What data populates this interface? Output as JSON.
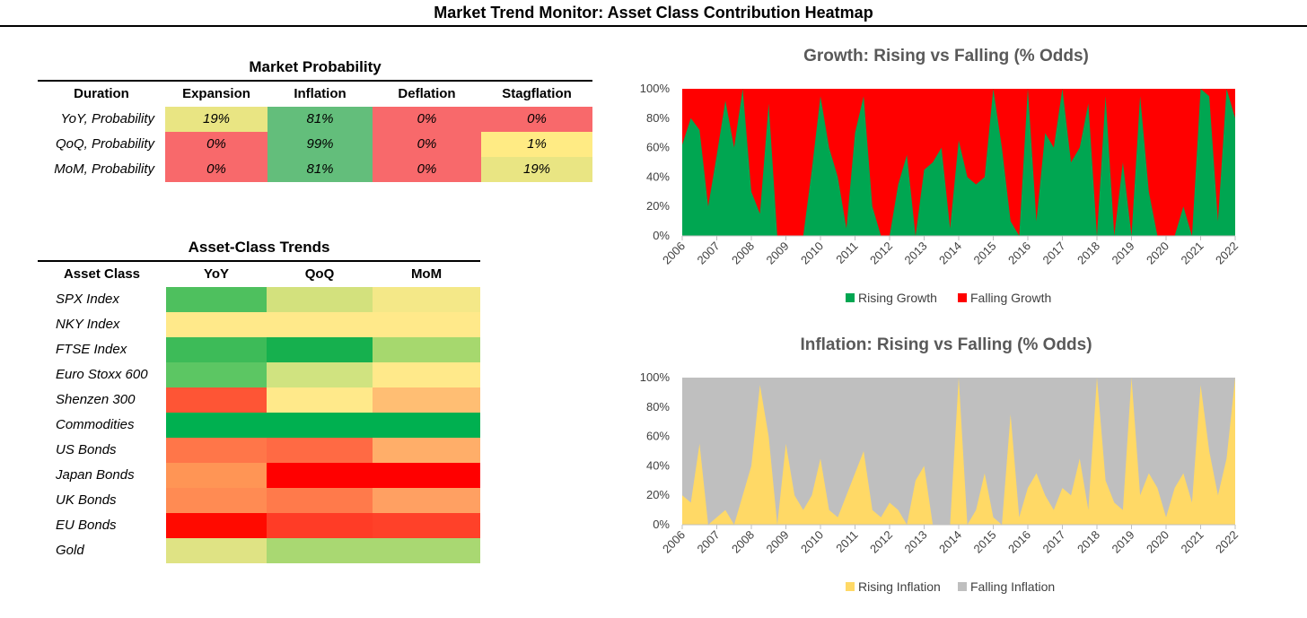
{
  "page_title": "Market Trend Monitor: Asset Class Contribution Heatmap",
  "market_probability": {
    "title": "Market Probability",
    "columns": [
      "Duration",
      "Expansion",
      "Inflation",
      "Deflation",
      "Stagflation"
    ],
    "rows": [
      {
        "label": "YoY, Probability",
        "values": [
          "19%",
          "81%",
          "0%",
          "0%"
        ],
        "colors": [
          "#E9E583",
          "#63BE7B",
          "#F8696B",
          "#F8696B"
        ]
      },
      {
        "label": "QoQ, Probability",
        "values": [
          "0%",
          "99%",
          "0%",
          "1%"
        ],
        "colors": [
          "#F8696B",
          "#63BE7B",
          "#F8696B",
          "#FFEB84"
        ]
      },
      {
        "label": "MoM, Probability",
        "values": [
          "0%",
          "81%",
          "0%",
          "19%"
        ],
        "colors": [
          "#F8696B",
          "#63BE7B",
          "#F8696B",
          "#E9E583"
        ]
      }
    ]
  },
  "asset_class_trends": {
    "title": "Asset-Class Trends",
    "columns": [
      "Asset Class",
      "YoY",
      "QoQ",
      "MoM"
    ],
    "rows": [
      {
        "label": "SPX Index",
        "colors": [
          "#4EC05E",
          "#D3E17D",
          "#F4E888"
        ]
      },
      {
        "label": "NKY Index",
        "colors": [
          "#FFE98A",
          "#FFE98A",
          "#FFE98A"
        ]
      },
      {
        "label": "FTSE Index",
        "colors": [
          "#3DBB58",
          "#16B04E",
          "#A6D86E"
        ]
      },
      {
        "label": "Euro Stoxx 600",
        "colors": [
          "#5CC663",
          "#D0E380",
          "#FFE98A"
        ]
      },
      {
        "label": "Shenzen 300",
        "colors": [
          "#FE5535",
          "#FFE98A",
          "#FFBE73"
        ]
      },
      {
        "label": "Commodities",
        "colors": [
          "#00B050",
          "#00B050",
          "#00B050"
        ]
      },
      {
        "label": "US Bonds",
        "colors": [
          "#FF7649",
          "#FF6A44",
          "#FFAE69"
        ]
      },
      {
        "label": "Japan Bonds",
        "colors": [
          "#FF9555",
          "#FF0000",
          "#FF0000"
        ]
      },
      {
        "label": "UK Bonds",
        "colors": [
          "#FF8B53",
          "#FF7A4B",
          "#FFA062"
        ]
      },
      {
        "label": "EU Bonds",
        "colors": [
          "#FF0A00",
          "#FF3C26",
          "#FF4129"
        ]
      },
      {
        "label": "Gold",
        "colors": [
          "#DFE384",
          "#A9D872",
          "#A9D872"
        ]
      }
    ]
  },
  "chart_data": [
    {
      "type": "area",
      "stacked": true,
      "title": "Growth: Rising vs Falling (% Odds)",
      "x_ticks": [
        "2006",
        "2007",
        "2008",
        "2009",
        "2010",
        "2011",
        "2012",
        "2013",
        "2014",
        "2015",
        "2016",
        "2017",
        "2018",
        "2019",
        "2020",
        "2021",
        "2022"
      ],
      "y_ticks": [
        "0%",
        "20%",
        "40%",
        "60%",
        "80%",
        "100%"
      ],
      "ylim": [
        0,
        100
      ],
      "legend_position": "bottom",
      "series": [
        {
          "name": "Rising Growth",
          "color": "#00A651"
        },
        {
          "name": "Falling Growth",
          "color": "#FF0000"
        }
      ],
      "x": [
        2006.0,
        2006.25,
        2006.5,
        2006.75,
        2007.0,
        2007.25,
        2007.5,
        2007.75,
        2008.0,
        2008.25,
        2008.5,
        2008.75,
        2009.0,
        2009.25,
        2009.5,
        2009.75,
        2010.0,
        2010.25,
        2010.5,
        2010.75,
        2011.0,
        2011.25,
        2011.5,
        2011.75,
        2012.0,
        2012.25,
        2012.5,
        2012.75,
        2013.0,
        2013.25,
        2013.5,
        2013.75,
        2014.0,
        2014.25,
        2014.5,
        2014.75,
        2015.0,
        2015.25,
        2015.5,
        2015.75,
        2016.0,
        2016.25,
        2016.5,
        2016.75,
        2017.0,
        2017.25,
        2017.5,
        2017.75,
        2018.0,
        2018.25,
        2018.5,
        2018.75,
        2019.0,
        2019.25,
        2019.5,
        2019.75,
        2020.0,
        2020.25,
        2020.5,
        2020.75,
        2021.0,
        2021.25,
        2021.5,
        2021.75,
        2022.0
      ],
      "rising_growth": [
        62,
        80,
        72,
        20,
        55,
        92,
        60,
        100,
        30,
        15,
        90,
        0,
        0,
        0,
        0,
        45,
        95,
        60,
        40,
        5,
        70,
        95,
        20,
        0,
        0,
        35,
        55,
        0,
        45,
        50,
        60,
        5,
        65,
        40,
        35,
        40,
        100,
        60,
        10,
        0,
        100,
        10,
        70,
        60,
        100,
        50,
        60,
        90,
        0,
        95,
        0,
        50,
        0,
        95,
        30,
        0,
        0,
        0,
        20,
        0,
        100,
        95,
        10,
        100,
        80
      ]
    },
    {
      "type": "area",
      "stacked": true,
      "title": "Inflation: Rising vs Falling  (% Odds)",
      "x_ticks": [
        "2006",
        "2007",
        "2008",
        "2009",
        "2010",
        "2011",
        "2012",
        "2013",
        "2014",
        "2015",
        "2016",
        "2017",
        "2018",
        "2019",
        "2020",
        "2021",
        "2022"
      ],
      "y_ticks": [
        "0%",
        "20%",
        "40%",
        "60%",
        "80%",
        "100%"
      ],
      "ylim": [
        0,
        100
      ],
      "legend_position": "bottom",
      "series": [
        {
          "name": "Rising Inflation",
          "color": "#FFD966"
        },
        {
          "name": "Falling Inflation",
          "color": "#BFBFBF"
        }
      ],
      "x": [
        2006.0,
        2006.25,
        2006.5,
        2006.75,
        2007.0,
        2007.25,
        2007.5,
        2007.75,
        2008.0,
        2008.25,
        2008.5,
        2008.75,
        2009.0,
        2009.25,
        2009.5,
        2009.75,
        2010.0,
        2010.25,
        2010.5,
        2010.75,
        2011.0,
        2011.25,
        2011.5,
        2011.75,
        2012.0,
        2012.25,
        2012.5,
        2012.75,
        2013.0,
        2013.25,
        2013.5,
        2013.75,
        2014.0,
        2014.25,
        2014.5,
        2014.75,
        2015.0,
        2015.25,
        2015.5,
        2015.75,
        2016.0,
        2016.25,
        2016.5,
        2016.75,
        2017.0,
        2017.25,
        2017.5,
        2017.75,
        2018.0,
        2018.25,
        2018.5,
        2018.75,
        2019.0,
        2019.25,
        2019.5,
        2019.75,
        2020.0,
        2020.25,
        2020.5,
        2020.75,
        2021.0,
        2021.25,
        2021.5,
        2021.75,
        2022.0
      ],
      "rising_inflation": [
        20,
        15,
        55,
        0,
        5,
        10,
        0,
        20,
        40,
        95,
        60,
        0,
        55,
        20,
        10,
        20,
        45,
        10,
        5,
        20,
        35,
        50,
        10,
        5,
        15,
        10,
        0,
        30,
        40,
        0,
        0,
        0,
        100,
        0,
        10,
        35,
        5,
        0,
        75,
        5,
        25,
        35,
        20,
        10,
        25,
        20,
        45,
        10,
        100,
        30,
        15,
        10,
        100,
        20,
        35,
        25,
        5,
        25,
        35,
        15,
        95,
        50,
        20,
        45,
        100
      ]
    }
  ]
}
